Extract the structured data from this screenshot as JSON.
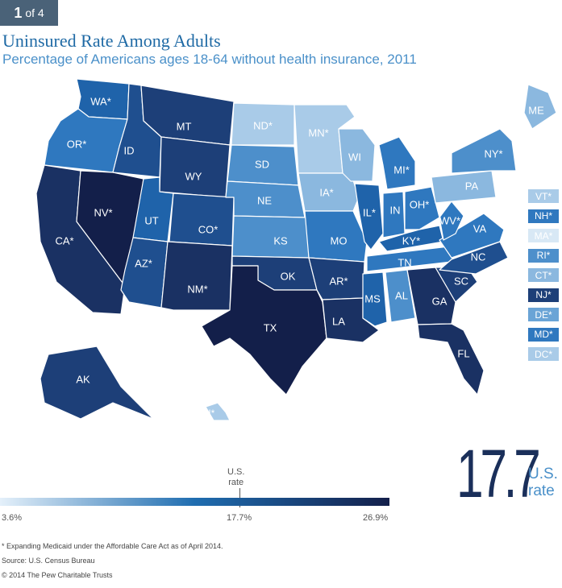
{
  "badge": {
    "number": "1",
    "of": "of 4"
  },
  "title": "Uninsured Rate Among Adults",
  "subtitle": "Percentage of Americans ages 18-64 without health insurance, 2011",
  "colors": {
    "c1": "#a9cbe8",
    "c2": "#8bb8df",
    "c3": "#6aa4d6",
    "c4": "#4d8fcb",
    "c5": "#2f78bf",
    "c6": "#1f63aa",
    "c7": "#1f4f8f",
    "c8": "#1d3f78",
    "c9": "#1a3163",
    "c10": "#131f4a"
  },
  "states": [
    {
      "abbr": "WA*",
      "color": "#1f63aa"
    },
    {
      "abbr": "OR*",
      "color": "#2f78bf"
    },
    {
      "abbr": "CA*",
      "color": "#1a3163"
    },
    {
      "abbr": "NV*",
      "color": "#131f4a"
    },
    {
      "abbr": "ID",
      "color": "#1f4f8f"
    },
    {
      "abbr": "MT",
      "color": "#1d3f78"
    },
    {
      "abbr": "WY",
      "color": "#1d3f78"
    },
    {
      "abbr": "UT",
      "color": "#1f63aa"
    },
    {
      "abbr": "AZ*",
      "color": "#1f4f8f"
    },
    {
      "abbr": "CO*",
      "color": "#1f4f8f"
    },
    {
      "abbr": "NM*",
      "color": "#1a3163"
    },
    {
      "abbr": "ND*",
      "color": "#a9cbe8"
    },
    {
      "abbr": "SD",
      "color": "#4d8fcb"
    },
    {
      "abbr": "NE",
      "color": "#4d8fcb"
    },
    {
      "abbr": "KS",
      "color": "#4d8fcb"
    },
    {
      "abbr": "OK",
      "color": "#1d3f78"
    },
    {
      "abbr": "TX",
      "color": "#131f4a"
    },
    {
      "abbr": "MN*",
      "color": "#a9cbe8"
    },
    {
      "abbr": "IA*",
      "color": "#8bb8df"
    },
    {
      "abbr": "MO",
      "color": "#2f78bf"
    },
    {
      "abbr": "AR*",
      "color": "#1d3f78"
    },
    {
      "abbr": "LA",
      "color": "#1a3163"
    },
    {
      "abbr": "WI",
      "color": "#8bb8df"
    },
    {
      "abbr": "IL*",
      "color": "#1f63aa"
    },
    {
      "abbr": "MI*",
      "color": "#2f78bf"
    },
    {
      "abbr": "IN",
      "color": "#2f78bf"
    },
    {
      "abbr": "OH*",
      "color": "#2f78bf"
    },
    {
      "abbr": "KY*",
      "color": "#1f63aa"
    },
    {
      "abbr": "TN",
      "color": "#2f78bf"
    },
    {
      "abbr": "MS",
      "color": "#1f63aa"
    },
    {
      "abbr": "AL",
      "color": "#4d8fcb"
    },
    {
      "abbr": "GA",
      "color": "#1a3163"
    },
    {
      "abbr": "FL",
      "color": "#1a3163"
    },
    {
      "abbr": "SC",
      "color": "#1d3f78"
    },
    {
      "abbr": "NC",
      "color": "#1f4f8f"
    },
    {
      "abbr": "VA",
      "color": "#2f78bf"
    },
    {
      "abbr": "WV*",
      "color": "#2f78bf"
    },
    {
      "abbr": "PA",
      "color": "#8bb8df"
    },
    {
      "abbr": "NY*",
      "color": "#4d8fcb"
    },
    {
      "abbr": "ME",
      "color": "#8bb8df"
    },
    {
      "abbr": "AK",
      "color": "#1d3f78"
    },
    {
      "abbr": "HI*",
      "color": "#a9cbe8"
    }
  ],
  "side_states": [
    {
      "abbr": "VT*",
      "color": "#a9cbe8"
    },
    {
      "abbr": "NH*",
      "color": "#2f78bf"
    },
    {
      "abbr": "MA*",
      "color": "#d8e8f5"
    },
    {
      "abbr": "RI*",
      "color": "#4d8fcb"
    },
    {
      "abbr": "CT*",
      "color": "#8bb8df"
    },
    {
      "abbr": "NJ*",
      "color": "#1d3f78"
    },
    {
      "abbr": "DE*",
      "color": "#6aa4d6"
    },
    {
      "abbr": "MD*",
      "color": "#2f78bf"
    },
    {
      "abbr": "DC*",
      "color": "#a9cbe8"
    }
  ],
  "legend": {
    "us_label_1": "U.S.",
    "us_label_2": "rate",
    "min": "3.6%",
    "mid": "17.7%",
    "max": "26.9%"
  },
  "big": {
    "value": "17.7",
    "label_1": "U.S.",
    "label_2": "rate"
  },
  "footnotes": {
    "note": "* Expanding Medicaid under the Affordable Care Act as of April 2014.",
    "source": "Source: U.S. Census Bureau",
    "copyright": "© 2014 The Pew Charitable Trusts"
  }
}
